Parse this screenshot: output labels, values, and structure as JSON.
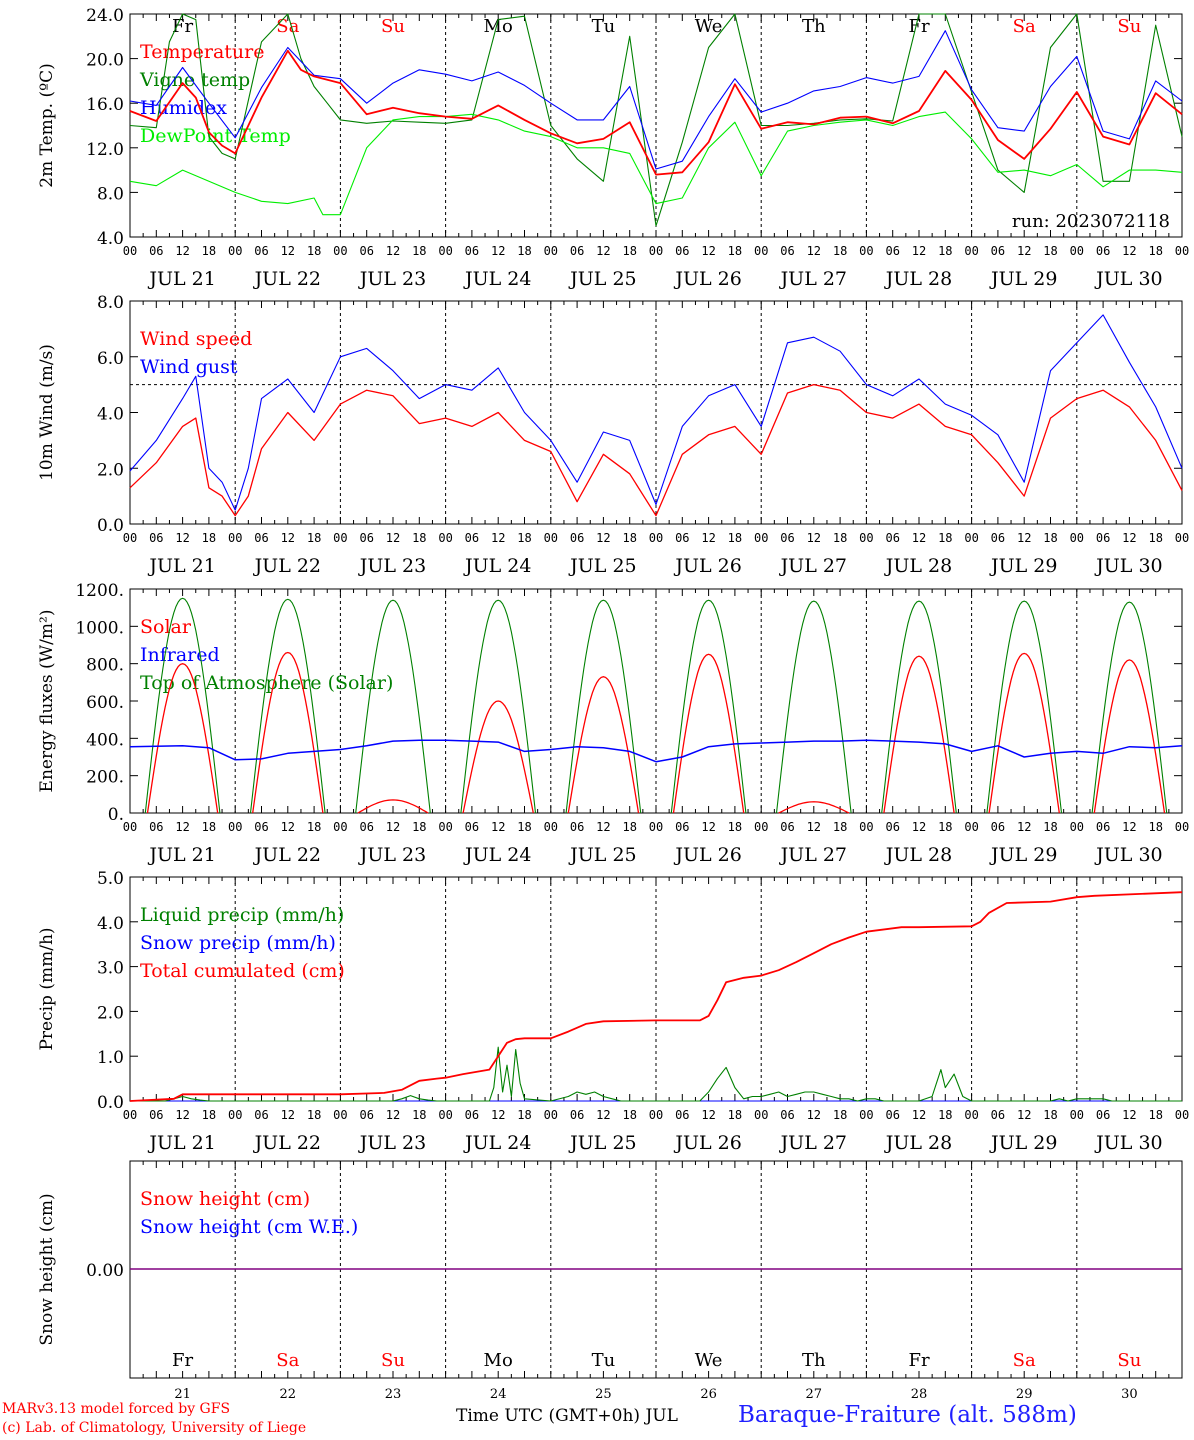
{
  "run_label": "run: 2023072118",
  "footer": {
    "model": "MARv3.13 model forced by GFS",
    "credit": "(c) Lab. of Climatology, University of Liege",
    "time_label": "Time UTC (GMT+0h) JUL",
    "station": "Baraque-Fraiture (alt. 588m)"
  },
  "days": {
    "weekdays": [
      "Fr",
      "Sa",
      "Su",
      "Mo",
      "Tu",
      "We",
      "Th",
      "Fr",
      "Sa",
      "Su"
    ],
    "weekend_flags": [
      false,
      true,
      true,
      false,
      false,
      false,
      false,
      false,
      true,
      true
    ],
    "dates": [
      "JUL 21",
      "JUL 22",
      "JUL 23",
      "JUL 24",
      "JUL 25",
      "JUL 26",
      "JUL 27",
      "JUL 28",
      "JUL 29",
      "JUL 30"
    ],
    "day_numbers": [
      "21",
      "22",
      "23",
      "24",
      "25",
      "26",
      "27",
      "28",
      "29",
      "30"
    ],
    "hour_ticks": [
      "00",
      "06",
      "12",
      "18"
    ]
  },
  "colors": {
    "red": "#ff0000",
    "green": "#008000",
    "blue": "#0000ff",
    "light_green": "#00ee00",
    "purple": "#800080",
    "black": "#000000"
  },
  "chart_data": [
    {
      "type": "line",
      "ylabel": "2m Temp. (ºC)",
      "ylim": [
        4,
        24
      ],
      "yticks": [
        "4.0",
        "8.0",
        "12.0",
        "16.0",
        "20.0",
        "24.0"
      ],
      "x_unit": "hours since JUL 21 00 UTC",
      "xlim": [
        0,
        240
      ],
      "series": [
        {
          "name": "Temperature",
          "color": "#ff0000",
          "x": [
            0,
            6,
            12,
            15,
            18,
            21,
            24,
            30,
            36,
            39,
            42,
            48,
            54,
            60,
            66,
            72,
            78,
            84,
            90,
            96,
            102,
            108,
            114,
            120,
            126,
            132,
            138,
            144,
            150,
            156,
            162,
            168,
            174,
            180,
            186,
            192,
            198,
            204,
            210,
            216,
            222,
            228,
            234,
            240
          ],
          "y": [
            15.3,
            14.4,
            17.8,
            16.5,
            13.4,
            12.2,
            11.5,
            16.5,
            20.7,
            19.0,
            18.4,
            17.8,
            15.0,
            15.6,
            15.1,
            14.8,
            14.6,
            15.8,
            14.5,
            13.3,
            12.4,
            12.8,
            14.3,
            9.6,
            9.8,
            12.5,
            17.7,
            13.7,
            14.3,
            14.1,
            14.7,
            14.8,
            14.2,
            15.3,
            18.9,
            16.3,
            12.7,
            11.0,
            13.7,
            17.0,
            13.0,
            12.3,
            16.9,
            15.0
          ]
        },
        {
          "name": "Vigne temp",
          "color": "#008000",
          "x": [
            0,
            6,
            9,
            12,
            15,
            18,
            21,
            24,
            30,
            36,
            39,
            42,
            45,
            48,
            54,
            60,
            66,
            72,
            78,
            84,
            90,
            96,
            102,
            108,
            114,
            120,
            126,
            132,
            138,
            144,
            150,
            156,
            162,
            168,
            174,
            180,
            186,
            192,
            198,
            204,
            210,
            216,
            222,
            228,
            234,
            240
          ],
          "y": [
            14.0,
            13.8,
            21.5,
            24.0,
            23.5,
            13.0,
            11.5,
            11.0,
            21.5,
            24.0,
            20.0,
            17.5,
            16.0,
            14.5,
            14.2,
            14.4,
            14.3,
            14.2,
            14.5,
            23.5,
            23.8,
            14.0,
            11.0,
            9.0,
            22.0,
            5.0,
            12.5,
            21.0,
            24.0,
            14.0,
            14.0,
            14.2,
            14.5,
            14.6,
            14.4,
            24.0,
            24.0,
            17.0,
            10.0,
            8.0,
            21.0,
            24.0,
            9.0,
            9.0,
            23.0,
            13.0
          ]
        },
        {
          "name": "Humidex",
          "color": "#0000ff",
          "x": [
            0,
            6,
            12,
            18,
            24,
            30,
            36,
            42,
            48,
            54,
            60,
            66,
            72,
            78,
            84,
            90,
            96,
            102,
            108,
            114,
            120,
            126,
            132,
            138,
            144,
            150,
            156,
            162,
            168,
            174,
            180,
            186,
            192,
            198,
            204,
            210,
            216,
            222,
            228,
            234,
            240
          ],
          "y": [
            16.2,
            15.8,
            19.2,
            16.0,
            12.9,
            17.4,
            21.0,
            18.5,
            18.2,
            16.0,
            17.8,
            19.0,
            18.6,
            18.0,
            18.8,
            17.6,
            16.0,
            14.5,
            14.5,
            17.5,
            10.1,
            10.8,
            14.8,
            18.2,
            15.2,
            16.0,
            17.1,
            17.5,
            18.3,
            17.8,
            18.4,
            22.5,
            17.2,
            13.8,
            13.5,
            17.5,
            20.2,
            13.5,
            12.8,
            18.0,
            16.2
          ]
        },
        {
          "name": "DewPoint Temp",
          "color": "#00ee00",
          "x": [
            0,
            6,
            12,
            18,
            24,
            30,
            36,
            42,
            44,
            48,
            54,
            60,
            66,
            72,
            78,
            84,
            90,
            96,
            102,
            108,
            114,
            120,
            126,
            132,
            138,
            144,
            150,
            156,
            162,
            168,
            174,
            180,
            186,
            192,
            198,
            204,
            210,
            216,
            222,
            228,
            234,
            240
          ],
          "y": [
            9.0,
            8.6,
            10.0,
            9.0,
            8.0,
            7.2,
            7.0,
            7.5,
            6.0,
            6.0,
            12.0,
            14.5,
            14.8,
            14.8,
            15.0,
            14.5,
            13.5,
            13.0,
            12.0,
            12.0,
            11.5,
            7.0,
            7.5,
            12.0,
            14.3,
            9.5,
            13.5,
            14.0,
            14.3,
            14.5,
            14.0,
            14.8,
            15.2,
            12.8,
            9.8,
            10.0,
            9.5,
            10.5,
            8.5,
            10.0,
            10.0,
            9.8
          ]
        }
      ],
      "legend": [
        "Temperature",
        "Vigne temp",
        "Humidex",
        "DewPoint Temp"
      ]
    },
    {
      "type": "line",
      "ylabel": "10m Wind (m/s)",
      "ylim": [
        0,
        8
      ],
      "yticks": [
        "0.0",
        "2.0",
        "4.0",
        "6.0",
        "8.0"
      ],
      "reference_line": 5,
      "xlim": [
        0,
        240
      ],
      "series": [
        {
          "name": "Wind speed",
          "color": "#ff0000",
          "x": [
            0,
            6,
            12,
            15,
            18,
            21,
            24,
            27,
            30,
            36,
            42,
            48,
            54,
            60,
            66,
            72,
            78,
            84,
            90,
            96,
            102,
            108,
            114,
            120,
            126,
            132,
            138,
            144,
            150,
            156,
            162,
            168,
            174,
            180,
            186,
            192,
            198,
            204,
            210,
            216,
            222,
            228,
            234,
            240
          ],
          "y": [
            1.3,
            2.2,
            3.5,
            3.8,
            1.3,
            1.0,
            0.3,
            1.0,
            2.7,
            4.0,
            3.0,
            4.3,
            4.8,
            4.6,
            3.6,
            3.8,
            3.5,
            4.0,
            3.0,
            2.6,
            0.8,
            2.5,
            1.8,
            0.3,
            2.5,
            3.2,
            3.5,
            2.5,
            4.7,
            5.0,
            4.8,
            4.0,
            3.8,
            4.3,
            3.5,
            3.2,
            2.2,
            1.0,
            3.8,
            4.5,
            4.8,
            4.2,
            3.0,
            1.2
          ]
        },
        {
          "name": "Wind gust",
          "color": "#0000ff",
          "x": [
            0,
            6,
            12,
            15,
            18,
            21,
            24,
            27,
            30,
            36,
            42,
            48,
            54,
            60,
            66,
            72,
            78,
            84,
            90,
            96,
            102,
            108,
            114,
            120,
            126,
            132,
            138,
            144,
            150,
            156,
            162,
            168,
            174,
            180,
            186,
            192,
            198,
            204,
            210,
            216,
            222,
            228,
            234,
            240
          ],
          "y": [
            1.9,
            3.0,
            4.5,
            5.3,
            2.0,
            1.5,
            0.5,
            2.0,
            4.5,
            5.2,
            4.0,
            6.0,
            6.3,
            5.5,
            4.5,
            5.0,
            4.8,
            5.6,
            4.0,
            3.0,
            1.5,
            3.3,
            3.0,
            0.7,
            3.5,
            4.6,
            5.0,
            3.5,
            6.5,
            6.7,
            6.2,
            5.0,
            4.6,
            5.2,
            4.3,
            3.9,
            3.2,
            1.5,
            5.5,
            6.5,
            7.5,
            5.8,
            4.2,
            2.0
          ]
        }
      ],
      "legend": [
        "Wind speed",
        "Wind gust"
      ]
    },
    {
      "type": "line",
      "ylabel": "Energy fluxes (W/m²)",
      "ylim": [
        0,
        1200
      ],
      "yticks": [
        "0.",
        "200.",
        "400.",
        "600.",
        "800.",
        "1000.",
        "1200."
      ],
      "xlim": [
        0,
        240
      ],
      "toa_peak": [
        1150,
        1145,
        1140,
        1140,
        1140,
        1140,
        1135,
        1135,
        1135,
        1130
      ],
      "series": [
        {
          "name": "Solar",
          "color": "#ff0000",
          "peaks": [
            800,
            860,
            70,
            600,
            730,
            850,
            60,
            840,
            855,
            820
          ]
        },
        {
          "name": "Infrared",
          "color": "#0000ff",
          "x": [
            0,
            12,
            18,
            24,
            30,
            36,
            42,
            48,
            54,
            60,
            66,
            72,
            78,
            84,
            90,
            96,
            102,
            108,
            114,
            120,
            126,
            132,
            138,
            144,
            150,
            156,
            162,
            168,
            174,
            180,
            186,
            192,
            198,
            204,
            210,
            216,
            222,
            228,
            234,
            240
          ],
          "y": [
            355,
            360,
            350,
            285,
            290,
            320,
            330,
            340,
            360,
            385,
            390,
            390,
            385,
            380,
            330,
            340,
            355,
            350,
            330,
            275,
            300,
            355,
            370,
            375,
            380,
            385,
            385,
            390,
            385,
            380,
            370,
            330,
            360,
            300,
            320,
            330,
            320,
            355,
            350,
            360
          ]
        },
        {
          "name": "Top of Atmosphere (Solar)",
          "color": "#008000"
        }
      ],
      "legend": [
        "Solar",
        "Infrared",
        "Top of Atmosphere (Solar)"
      ]
    },
    {
      "type": "line",
      "ylabel": "Precip (mm/h)",
      "ylim": [
        0,
        5
      ],
      "yticks": [
        "0.0",
        "1.0",
        "2.0",
        "3.0",
        "4.0",
        "5.0"
      ],
      "xlim": [
        0,
        240
      ],
      "series": [
        {
          "name": "Liquid precip (mm/h)",
          "color": "#008000",
          "x": [
            0,
            8,
            10,
            12,
            14,
            16,
            18,
            24,
            60,
            62,
            64,
            66,
            68,
            70,
            72,
            82,
            83,
            84,
            85,
            86,
            87,
            88,
            89,
            90,
            96,
            100,
            102,
            104,
            106,
            108,
            110,
            112,
            130,
            132,
            134,
            136,
            138,
            140,
            142,
            144,
            146,
            148,
            150,
            152,
            154,
            156,
            158,
            160,
            162,
            164,
            166,
            168,
            170,
            172,
            174,
            176,
            178,
            180,
            183,
            185,
            186,
            188,
            190,
            192,
            210,
            212,
            214,
            216,
            220,
            222,
            224,
            240
          ],
          "y": [
            0,
            0,
            0.05,
            0.1,
            0.05,
            0.02,
            0,
            0,
            0,
            0.05,
            0.12,
            0.05,
            0.02,
            0,
            0,
            0,
            0.3,
            1.2,
            0.2,
            0.8,
            0.1,
            1.15,
            0.4,
            0.05,
            0,
            0.1,
            0.2,
            0.15,
            0.2,
            0.1,
            0.05,
            0,
            0,
            0.2,
            0.5,
            0.75,
            0.3,
            0.05,
            0.1,
            0.1,
            0.15,
            0.2,
            0.1,
            0.15,
            0.2,
            0.2,
            0.15,
            0.1,
            0.05,
            0.05,
            0,
            0.05,
            0.05,
            0,
            0,
            0,
            0,
            0,
            0.1,
            0.7,
            0.3,
            0.6,
            0.1,
            0,
            0,
            0.05,
            0,
            0.05,
            0.05,
            0.05,
            0,
            0
          ]
        },
        {
          "name": "Snow precip (mm/h)",
          "color": "#0000ff",
          "x": [
            0,
            240
          ],
          "y": [
            0,
            0
          ]
        },
        {
          "name": "Total cumulated (cm)",
          "color": "#ff0000",
          "x": [
            0,
            10,
            12,
            24,
            48,
            58,
            62,
            64,
            66,
            70,
            72,
            76,
            82,
            84,
            86,
            88,
            90,
            96,
            100,
            104,
            108,
            120,
            130,
            132,
            134,
            136,
            140,
            144,
            148,
            152,
            156,
            160,
            164,
            168,
            176,
            180,
            192,
            194,
            196,
            200,
            210,
            216,
            220,
            240
          ],
          "y": [
            0,
            0.05,
            0.15,
            0.15,
            0.15,
            0.18,
            0.25,
            0.35,
            0.45,
            0.5,
            0.52,
            0.6,
            0.7,
            1.0,
            1.3,
            1.38,
            1.4,
            1.4,
            1.55,
            1.72,
            1.78,
            1.8,
            1.8,
            1.9,
            2.25,
            2.65,
            2.75,
            2.8,
            2.92,
            3.1,
            3.3,
            3.5,
            3.65,
            3.78,
            3.88,
            3.88,
            3.9,
            4.0,
            4.2,
            4.42,
            4.45,
            4.55,
            4.58,
            4.66
          ]
        }
      ],
      "legend": [
        "Liquid precip (mm/h)",
        "Snow precip (mm/h)",
        "Total cumulated (cm)"
      ]
    },
    {
      "type": "line",
      "ylabel": "Snow height (cm)",
      "yticks": [
        "0.00"
      ],
      "xlim": [
        0,
        240
      ],
      "series": [
        {
          "name": "Snow height (cm)",
          "color": "#ff0000",
          "x": [
            0,
            240
          ],
          "y": [
            0,
            0
          ]
        },
        {
          "name": "Snow height (cm W.E.)",
          "color": "#0000ff",
          "x": [
            0,
            240
          ],
          "y": [
            0,
            0
          ]
        }
      ],
      "legend": [
        "Snow height (cm)",
        "Snow height (cm W.E.)"
      ]
    }
  ]
}
